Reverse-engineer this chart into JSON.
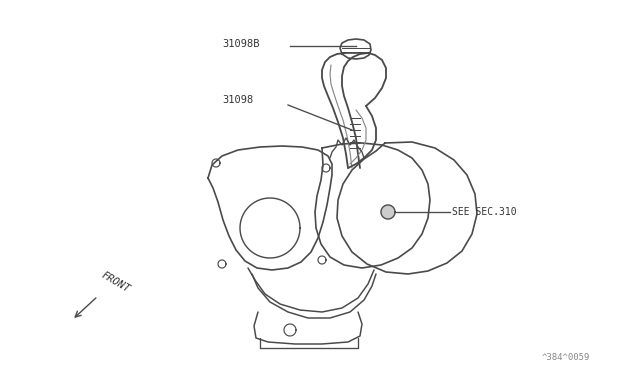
{
  "bg_color": "#ffffff",
  "line_color": "#4a4a4a",
  "line_width": 1.2,
  "text_color": "#333333",
  "label_31098B": "31098B",
  "label_31098": "31098",
  "label_see_sec": "SEE SEC.310",
  "label_front": "FRONT",
  "label_part_num": "^384^0059",
  "font_size_labels": 7.5,
  "font_size_small": 6.5
}
